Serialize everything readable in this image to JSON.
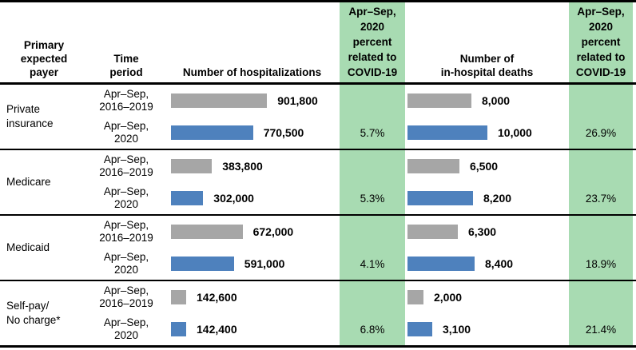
{
  "colors": {
    "bar_2016_2019": "#a6a6a6",
    "bar_2020": "#4e81bd",
    "covid_column_bg": "#a8dbb2",
    "border": "#000000"
  },
  "header": {
    "payer": "Primary\nexpected\npayer",
    "period": "Time\nperiod",
    "hospitalizations": "Number of hospitalizations",
    "covid_pct": "Apr–Sep,\n2020\npercent\nrelated to\nCOVID-19",
    "deaths": "Number of\nin-hospital deaths"
  },
  "rows": [
    {
      "payer": "Private\ninsurance",
      "periods": [
        {
          "label": "Apr–Sep,\n2016–2019",
          "hosp": 901800,
          "hosp_label": "901,800",
          "deaths": 8000,
          "deaths_label": "8,000"
        },
        {
          "label": "Apr–Sep,\n2020",
          "hosp": 770500,
          "hosp_label": "770,500",
          "deaths": 10000,
          "deaths_label": "10,000"
        }
      ],
      "covid_hosp_pct": "5.7%",
      "covid_deaths_pct": "26.9%"
    },
    {
      "payer": "Medicare",
      "periods": [
        {
          "label": "Apr–Sep,\n2016–2019",
          "hosp": 383800,
          "hosp_label": "383,800",
          "deaths": 6500,
          "deaths_label": "6,500"
        },
        {
          "label": "Apr–Sep,\n2020",
          "hosp": 302000,
          "hosp_label": "302,000",
          "deaths": 8200,
          "deaths_label": "8,200"
        }
      ],
      "covid_hosp_pct": "5.3%",
      "covid_deaths_pct": "23.7%"
    },
    {
      "payer": "Medicaid",
      "periods": [
        {
          "label": "Apr–Sep,\n2016–2019",
          "hosp": 672000,
          "hosp_label": "672,000",
          "deaths": 6300,
          "deaths_label": "6,300"
        },
        {
          "label": "Apr–Sep,\n2020",
          "hosp": 591000,
          "hosp_label": "591,000",
          "deaths": 8400,
          "deaths_label": "8,400"
        }
      ],
      "covid_hosp_pct": "4.1%",
      "covid_deaths_pct": "18.9%"
    },
    {
      "payer": "Self-pay/\nNo charge*",
      "periods": [
        {
          "label": "Apr–Sep,\n2016–2019",
          "hosp": 142600,
          "hosp_label": "142,600",
          "deaths": 2000,
          "deaths_label": "2,000"
        },
        {
          "label": "Apr–Sep,\n2020",
          "hosp": 142400,
          "hosp_label": "142,400",
          "deaths": 3100,
          "deaths_label": "3,100"
        }
      ],
      "covid_hosp_pct": "6.8%",
      "covid_deaths_pct": "21.4%"
    }
  ],
  "chart_data": [
    {
      "type": "bar",
      "title": "Number of hospitalizations",
      "categories": [
        "Private insurance",
        "Medicare",
        "Medicaid",
        "Self-pay/No charge*"
      ],
      "series": [
        {
          "name": "Apr–Sep, 2016–2019",
          "values": [
            901800,
            383800,
            672000,
            142600
          ]
        },
        {
          "name": "Apr–Sep, 2020",
          "values": [
            770500,
            302000,
            591000,
            142400
          ]
        }
      ],
      "annotations": {
        "apr_sep_2020_percent_related_to_covid19": [
          "5.7%",
          "5.3%",
          "4.1%",
          "6.8%"
        ]
      },
      "layout": {
        "orientation": "horizontal",
        "data_labels": true,
        "grid": false,
        "legend": "none"
      }
    },
    {
      "type": "bar",
      "title": "Number of in-hospital deaths",
      "categories": [
        "Private insurance",
        "Medicare",
        "Medicaid",
        "Self-pay/No charge*"
      ],
      "series": [
        {
          "name": "Apr–Sep, 2016–2019",
          "values": [
            8000,
            6500,
            6300,
            2000
          ]
        },
        {
          "name": "Apr–Sep, 2020",
          "values": [
            10000,
            8200,
            8400,
            3100
          ]
        }
      ],
      "annotations": {
        "apr_sep_2020_percent_related_to_covid19": [
          "26.9%",
          "23.7%",
          "18.9%",
          "21.4%"
        ]
      },
      "layout": {
        "orientation": "horizontal",
        "data_labels": true,
        "grid": false,
        "legend": "none"
      }
    }
  ]
}
